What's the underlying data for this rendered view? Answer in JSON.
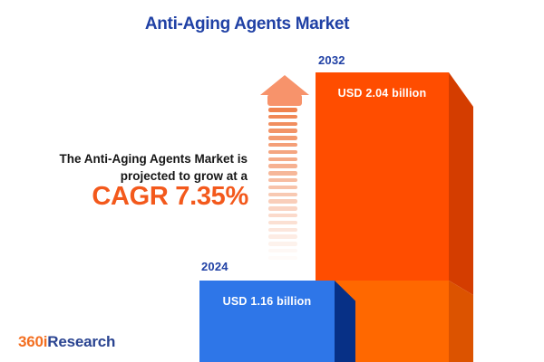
{
  "title": "Anti-Aging Agents Market",
  "description": {
    "line1": "The Anti-Aging Agents Market is",
    "line2": "projected to grow at a",
    "cagr": "CAGR 7.35%"
  },
  "chart_data": {
    "type": "bar",
    "title": "Anti-Aging Agents Market",
    "unit": "USD billion",
    "categories": [
      "2024",
      "2032"
    ],
    "values": [
      1.16,
      2.04
    ],
    "cagr_percent": 7.35,
    "annotation": "The Anti-Aging Agents Market is projected to grow at a CAGR 7.35%",
    "legend_position": "none",
    "grid": false,
    "bars": [
      {
        "year": "2024",
        "value": 1.16,
        "label": "USD 1.16 billion",
        "front_color": "#2E76E8",
        "side_color": "#073086"
      },
      {
        "year": "2032",
        "value": 2.04,
        "label": "USD 2.04 billion",
        "front_color_top": "#FF4D00",
        "front_color_bottom": "#FF6800",
        "side_color_top": "#D43D00",
        "side_color_bottom": "#DC5300"
      }
    ]
  },
  "logo": {
    "part1": "360i",
    "part2": "Research"
  },
  "colors": {
    "background": "#FFFFFF",
    "title_blue": "#2041A5",
    "cagr_orange": "#F3591C",
    "arrow_orange": "#F7936B",
    "text_dark": "#161616",
    "logo_orange": "#F36F21",
    "logo_navy": "#2A4491"
  }
}
